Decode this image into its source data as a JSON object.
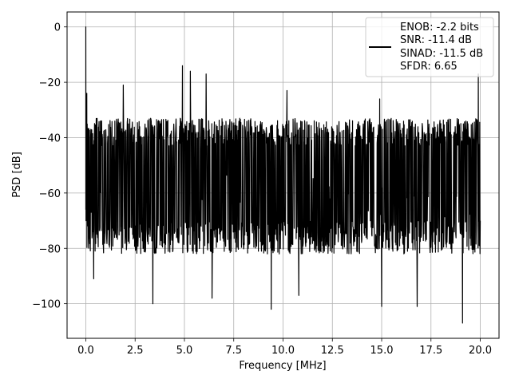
{
  "chart_data": {
    "type": "line",
    "xlabel": "Frequency [MHz]",
    "ylabel": "PSD [dB]",
    "xlim": [
      -0.95,
      20.95
    ],
    "ylim": [
      -112.5,
      5.4
    ],
    "xticks": [
      0.0,
      2.5,
      5.0,
      7.5,
      10.0,
      12.5,
      15.0,
      17.5,
      20.0
    ],
    "xtick_labels": [
      "0.0",
      "2.5",
      "5.0",
      "7.5",
      "10.0",
      "12.5",
      "15.0",
      "17.5",
      "20.0"
    ],
    "yticks": [
      0,
      -20,
      -40,
      -60,
      -80,
      -100
    ],
    "ytick_labels": [
      "0",
      "−20",
      "−40",
      "−60",
      "−80",
      "−100"
    ],
    "grid": true,
    "legend": {
      "placement": "top-right",
      "entries": [
        "ENOB: -2.2 bits",
        "SNR: -11.4 dB",
        "SINAD: -11.5 dB",
        "SFDR: 6.65"
      ]
    },
    "series": [
      {
        "color": "#000000",
        "description": "dense noisy spectrum from 0 to 20 MHz",
        "x_range": [
          0.0,
          20.0
        ],
        "noise_band_db": [
          -82,
          -33
        ],
        "median_db": -58,
        "peaks": [
          {
            "x": 0.0,
            "y": 0.0
          },
          {
            "x": 0.05,
            "y": -24
          },
          {
            "x": 1.9,
            "y": -21
          },
          {
            "x": 4.9,
            "y": -14
          },
          {
            "x": 5.3,
            "y": -16
          },
          {
            "x": 6.1,
            "y": -17
          },
          {
            "x": 10.2,
            "y": -23
          },
          {
            "x": 14.9,
            "y": -26
          },
          {
            "x": 19.9,
            "y": -17
          }
        ],
        "troughs": [
          {
            "x": 0.4,
            "y": -91
          },
          {
            "x": 3.4,
            "y": -100
          },
          {
            "x": 6.4,
            "y": -98
          },
          {
            "x": 9.4,
            "y": -102
          },
          {
            "x": 10.8,
            "y": -97
          },
          {
            "x": 15.0,
            "y": -101
          },
          {
            "x": 16.8,
            "y": -101
          },
          {
            "x": 19.1,
            "y": -107
          }
        ]
      }
    ]
  }
}
